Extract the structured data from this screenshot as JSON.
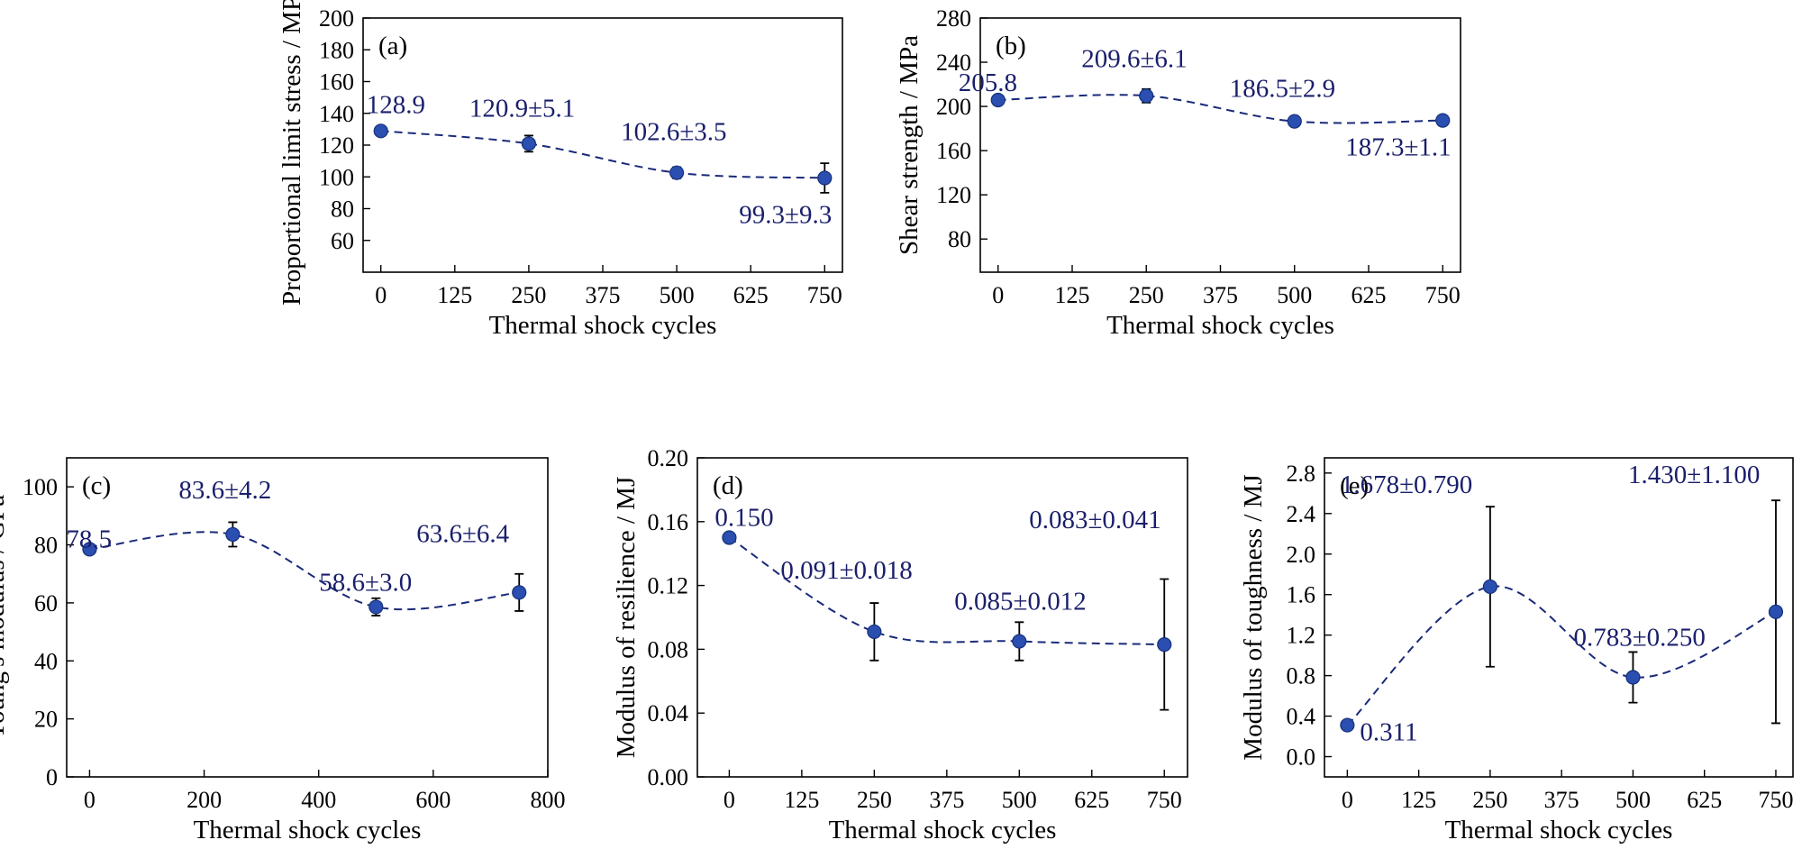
{
  "chart_data": [
    {
      "id": "a",
      "type": "scatter",
      "panel_label": "(a)",
      "xlabel": "Thermal shock cycles",
      "ylabel": "Proportional limit stress / MPa",
      "xlim": [
        -30,
        780
      ],
      "ylim": [
        40,
        200
      ],
      "xticks": [
        0,
        125,
        250,
        375,
        500,
        625,
        750
      ],
      "yticks": [
        60,
        80,
        100,
        120,
        140,
        160,
        180,
        200
      ],
      "yfmt": 0,
      "series": [
        {
          "x": [
            0,
            250,
            500,
            750
          ],
          "y": [
            128.9,
            120.9,
            102.6,
            99.3
          ],
          "err": [
            0,
            5.1,
            3.5,
            9.3
          ],
          "labels": [
            "128.9",
            "120.9±5.1",
            "102.6±3.5",
            "99.3±9.3"
          ]
        }
      ],
      "grid": false,
      "trend": "dashed smooth curve"
    },
    {
      "id": "b",
      "type": "scatter",
      "panel_label": "(b)",
      "xlabel": "Thermal shock cycles",
      "ylabel": "Shear strength / MPa",
      "xlim": [
        -30,
        780
      ],
      "ylim": [
        50,
        280
      ],
      "xticks": [
        0,
        125,
        250,
        375,
        500,
        625,
        750
      ],
      "yticks": [
        80,
        120,
        160,
        200,
        240,
        280
      ],
      "yfmt": 0,
      "series": [
        {
          "x": [
            0,
            250,
            500,
            750
          ],
          "y": [
            205.8,
            209.6,
            186.5,
            187.3
          ],
          "err": [
            0,
            6.1,
            2.9,
            1.1
          ],
          "labels": [
            "205.8",
            "209.6±6.1",
            "186.5±2.9",
            "187.3±1.1"
          ]
        }
      ],
      "grid": false,
      "trend": "dashed smooth curve"
    },
    {
      "id": "c",
      "type": "scatter",
      "panel_label": "(c)",
      "xlabel": "Thermal shock cycles",
      "ylabel": "Young's modulus / GPa",
      "xlim": [
        -40,
        800
      ],
      "ylim": [
        0,
        110
      ],
      "xticks": [
        0,
        200,
        400,
        600,
        800
      ],
      "yticks": [
        0,
        20,
        40,
        60,
        80,
        100
      ],
      "yfmt": 0,
      "series": [
        {
          "x": [
            0,
            250,
            500,
            750
          ],
          "y": [
            78.5,
            83.6,
            58.6,
            63.6
          ],
          "err": [
            0,
            4.2,
            3.0,
            6.4
          ],
          "labels": [
            "78.5",
            "83.6±4.2",
            "58.6±3.0",
            "63.6±6.4"
          ]
        }
      ],
      "grid": false,
      "trend": "dashed smooth curve"
    },
    {
      "id": "d",
      "type": "scatter",
      "panel_label": "(d)",
      "xlabel": "Thermal shock cycles",
      "ylabel": "Modulus of resilience / MJ",
      "xlim": [
        -55,
        790
      ],
      "ylim": [
        0,
        0.2
      ],
      "xticks": [
        0,
        125,
        250,
        375,
        500,
        625,
        750
      ],
      "yticks": [
        0,
        0.04,
        0.08,
        0.12,
        0.16,
        0.2
      ],
      "yfmt": 2,
      "series": [
        {
          "x": [
            0,
            250,
            500,
            750
          ],
          "y": [
            0.15,
            0.091,
            0.085,
            0.083
          ],
          "err": [
            0,
            0.018,
            0.012,
            0.041
          ],
          "labels": [
            "0.150",
            "0.091±0.018",
            "0.085±0.012",
            "0.083±0.041"
          ]
        }
      ],
      "grid": false,
      "trend": "dashed smooth curve"
    },
    {
      "id": "e",
      "type": "scatter",
      "panel_label": "(e)",
      "xlabel": "Thermal shock cycles",
      "ylabel": "Modulus of toughness / MJ",
      "xlim": [
        -40,
        780
      ],
      "ylim": [
        -0.2,
        2.95
      ],
      "xticks": [
        0,
        125,
        250,
        375,
        500,
        625,
        750
      ],
      "yticks": [
        0,
        0.4,
        0.8,
        1.2,
        1.6,
        2.0,
        2.4,
        2.8
      ],
      "yfmt": 1,
      "series": [
        {
          "x": [
            0,
            250,
            500,
            750
          ],
          "y": [
            0.311,
            1.678,
            0.783,
            1.43
          ],
          "err": [
            0,
            0.79,
            0.25,
            1.1
          ],
          "labels": [
            "0.311",
            "1.678±0.790",
            "0.783±0.250",
            "1.430±1.100"
          ]
        }
      ],
      "grid": false,
      "trend": "dashed smooth curve"
    }
  ],
  "colors": {
    "marker": "#2a4fb0",
    "curve": "#1a2a7a",
    "data_label": "#1a1f6b",
    "axes": "#000000"
  }
}
